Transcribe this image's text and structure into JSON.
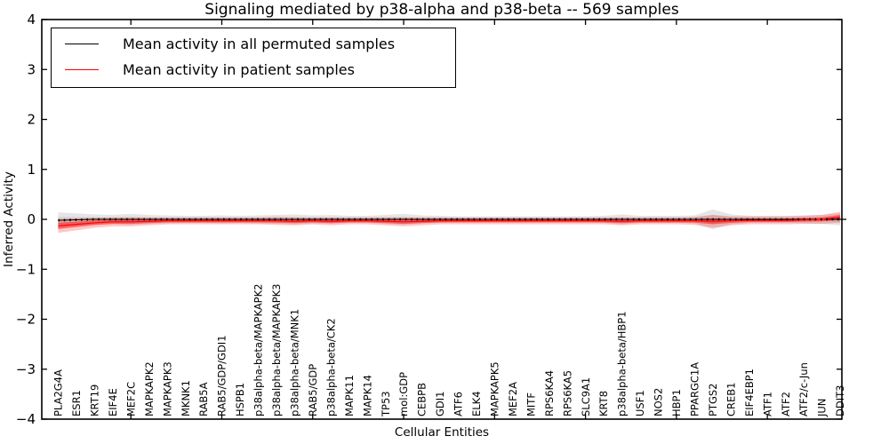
{
  "chart_data": {
    "type": "line",
    "title": "Signaling mediated by p38-alpha and p38-beta -- 569 samples",
    "xlabel": "Cellular Entities",
    "ylabel": "Inferred Activity",
    "ylim": [
      -4,
      4
    ],
    "xlim": [
      0.1,
      44.1
    ],
    "yticks": [
      4,
      3,
      2,
      1,
      0,
      -1,
      -2,
      -3,
      -4
    ],
    "xtick_positions": [
      5,
      10,
      15,
      20,
      25,
      30,
      35,
      40
    ],
    "grid": false,
    "legend_position": "upper left",
    "categories": [
      "PLA2G4A",
      "ESR1",
      "KRT19",
      "EIF4E",
      "MEF2C",
      "MAPKAPK2",
      "MAPKAPK3",
      "MKNK1",
      "RAB5A",
      "RAB5/GDP/GDI1",
      "HSPB1",
      "p38alpha-beta/MAPKAPK2",
      "p38alpha-beta/MAPKAPK3",
      "p38alpha-beta/MNK1",
      "RAB5/GDP",
      "p38alpha-beta/CK2",
      "MAPK11",
      "MAPK14",
      "TP53",
      "mol:GDP",
      "CEBPB",
      "GDI1",
      "ATF6",
      "ELK4",
      "MAPKAPK5",
      "MEF2A",
      "MITF",
      "RPS6KA4",
      "RPS6KA5",
      "SLC9A1",
      "KRT8",
      "p38alpha-beta/HBP1",
      "USF1",
      "NOS2",
      "HBP1",
      "PPARGC1A",
      "PTGS2",
      "CREB1",
      "EIF4EBP1",
      "ATF1",
      "ATF2",
      "ATF2/c-Jun",
      "JUN",
      "DDIT3"
    ],
    "series": [
      {
        "name": "Mean activity in all permuted samples",
        "color": "#000000",
        "marker": "dotted",
        "band_outer_color": "rgba(0,0,0,0.10)",
        "band_inner_color": "rgba(0,0,0,0.07)",
        "values": [
          -0.02,
          -0.01,
          0,
          0,
          0,
          0,
          0,
          0,
          0,
          0,
          0,
          0,
          0,
          0,
          0,
          0,
          0,
          0,
          0,
          0,
          0,
          0,
          0,
          0,
          0,
          0,
          0,
          0,
          0,
          0,
          0,
          0,
          0,
          0,
          0,
          0,
          0,
          0,
          0,
          0,
          0,
          0,
          0,
          0
        ],
        "band_halfwidth": [
          0.16,
          0.13,
          0.1,
          0.09,
          0.11,
          0.09,
          0.08,
          0.07,
          0.07,
          0.08,
          0.07,
          0.08,
          0.09,
          0.1,
          0.08,
          0.09,
          0.07,
          0.07,
          0.09,
          0.11,
          0.08,
          0.07,
          0.06,
          0.06,
          0.06,
          0.06,
          0.06,
          0.06,
          0.06,
          0.06,
          0.07,
          0.1,
          0.07,
          0.07,
          0.07,
          0.08,
          0.2,
          0.1,
          0.07,
          0.07,
          0.07,
          0.08,
          0.09,
          0.12
        ]
      },
      {
        "name": "Mean activity in patient samples",
        "color": "#ff0000",
        "marker": "none",
        "band_outer_color": "rgba(255,0,0,0.22)",
        "band_inner_color": "rgba(255,0,0,0.45)",
        "values": [
          -0.13,
          -0.1,
          -0.07,
          -0.05,
          -0.05,
          -0.04,
          -0.03,
          -0.03,
          -0.03,
          -0.03,
          -0.03,
          -0.03,
          -0.03,
          -0.04,
          -0.03,
          -0.04,
          -0.03,
          -0.03,
          -0.04,
          -0.05,
          -0.04,
          -0.03,
          -0.03,
          -0.03,
          -0.03,
          -0.03,
          -0.03,
          -0.03,
          -0.03,
          -0.03,
          -0.03,
          -0.04,
          -0.03,
          -0.03,
          -0.03,
          -0.03,
          -0.04,
          -0.03,
          -0.02,
          -0.02,
          -0.02,
          -0.01,
          0.0,
          0.04
        ],
        "band_halfwidth": [
          0.14,
          0.12,
          0.1,
          0.09,
          0.09,
          0.08,
          0.07,
          0.07,
          0.07,
          0.07,
          0.07,
          0.07,
          0.08,
          0.08,
          0.07,
          0.08,
          0.07,
          0.07,
          0.08,
          0.09,
          0.08,
          0.07,
          0.07,
          0.07,
          0.07,
          0.07,
          0.07,
          0.07,
          0.07,
          0.07,
          0.07,
          0.08,
          0.07,
          0.07,
          0.07,
          0.08,
          0.13,
          0.09,
          0.08,
          0.08,
          0.08,
          0.08,
          0.09,
          0.11
        ]
      }
    ]
  },
  "legend": {
    "entries": [
      {
        "label": "Mean activity in all permuted samples",
        "color": "#000000"
      },
      {
        "label": "Mean activity in patient samples",
        "color": "#ff0000"
      }
    ]
  }
}
